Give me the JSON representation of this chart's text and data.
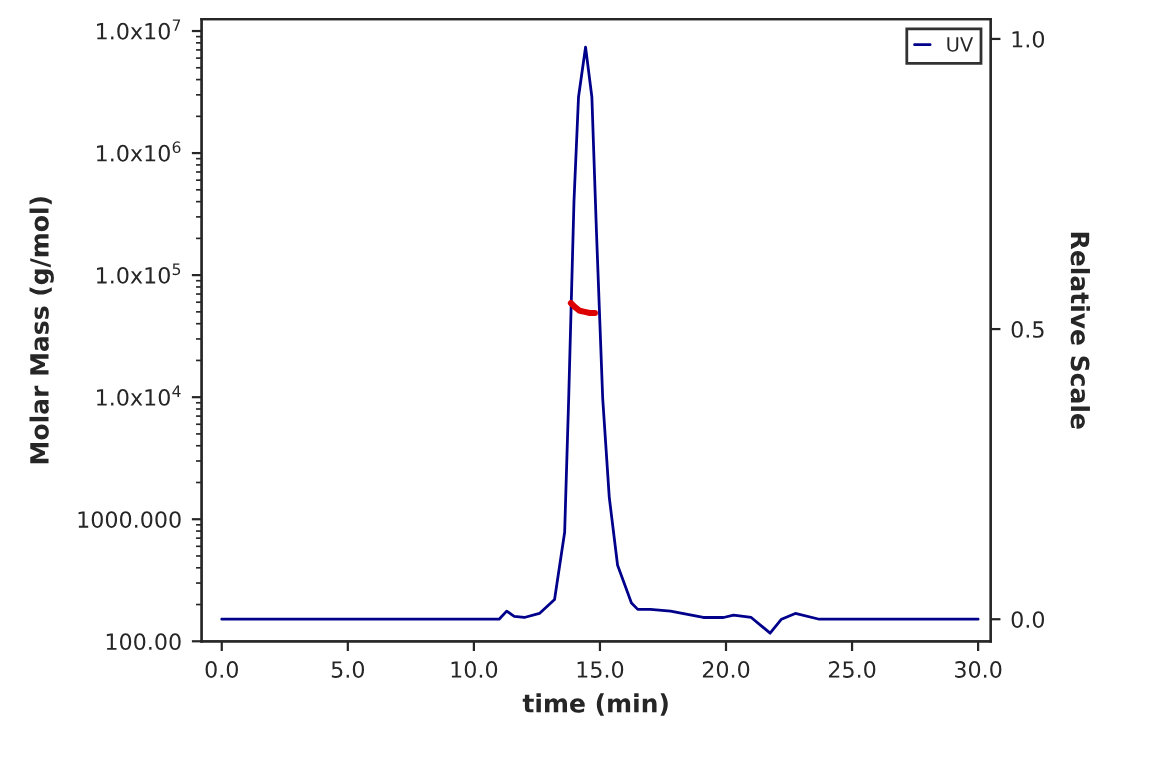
{
  "chart_data": {
    "type": "line",
    "xlabel": "time (min)",
    "ylabel": "Molar Mass (g/mol)",
    "y2label": "Relative Scale",
    "xlim": [
      -0.8,
      30.5
    ],
    "xticks": [
      {
        "value": 0,
        "label": "0.0"
      },
      {
        "value": 5,
        "label": "5.0"
      },
      {
        "value": 10,
        "label": "10.0"
      },
      {
        "value": 15,
        "label": "15.0"
      },
      {
        "value": 20,
        "label": "20.0"
      },
      {
        "value": 25,
        "label": "25.0"
      },
      {
        "value": 30,
        "label": "30.0"
      }
    ],
    "log": "y",
    "ylim": [
      100,
      12500000
    ],
    "yticks": [
      {
        "value": 100,
        "label": "100.00"
      },
      {
        "value": 1000,
        "label": "1000.000"
      },
      {
        "value": 10000,
        "label": "1.0x10$^{4}$"
      },
      {
        "value": 100000,
        "label": "1.0x10$^{5}$"
      },
      {
        "value": 1000000,
        "label": "1.0x10$^{6}$"
      },
      {
        "value": 10000000,
        "label": "1.0x10$^{7}$"
      }
    ],
    "y2lim": [
      -0.038,
      1.034
    ],
    "y2ticks": [
      {
        "value": 0,
        "label": "0.0"
      },
      {
        "value": 0.5,
        "label": "0.5"
      },
      {
        "value": 1,
        "label": "1.0"
      }
    ],
    "legend": "top right",
    "grid": false,
    "marker": "none",
    "line_style": "solid",
    "series": [
      {
        "name": "UV",
        "color": "#00008b",
        "axis": "y2",
        "x": [
          0,
          5,
          10,
          11.0,
          11.3,
          11.6,
          12.0,
          12.6,
          13.2,
          13.6,
          13.76,
          13.97,
          14.15,
          14.43,
          14.68,
          14.86,
          15.11,
          15.37,
          15.7,
          16.25,
          16.5,
          17.0,
          17.8,
          19.1,
          19.9,
          20.3,
          21.0,
          21.75,
          22.2,
          22.75,
          23.7,
          30
        ],
        "values": [
          0,
          0,
          0,
          0,
          0.014,
          0.005,
          0.003,
          0.01,
          0.034,
          0.15,
          0.38,
          0.72,
          0.9,
          0.986,
          0.9,
          0.67,
          0.38,
          0.21,
          0.093,
          0.028,
          0.017,
          0.017,
          0.014,
          0.003,
          0.003,
          0.007,
          0.003,
          -0.024,
          0,
          0.01,
          0,
          0
        ]
      },
      {
        "color": "#dd0000",
        "axis": "y",
        "x": [
          13.85,
          14.0,
          14.2,
          14.4,
          14.6,
          14.8
        ],
        "values": [
          59000,
          55000,
          51000,
          50000,
          49000,
          49000
        ]
      }
    ]
  }
}
